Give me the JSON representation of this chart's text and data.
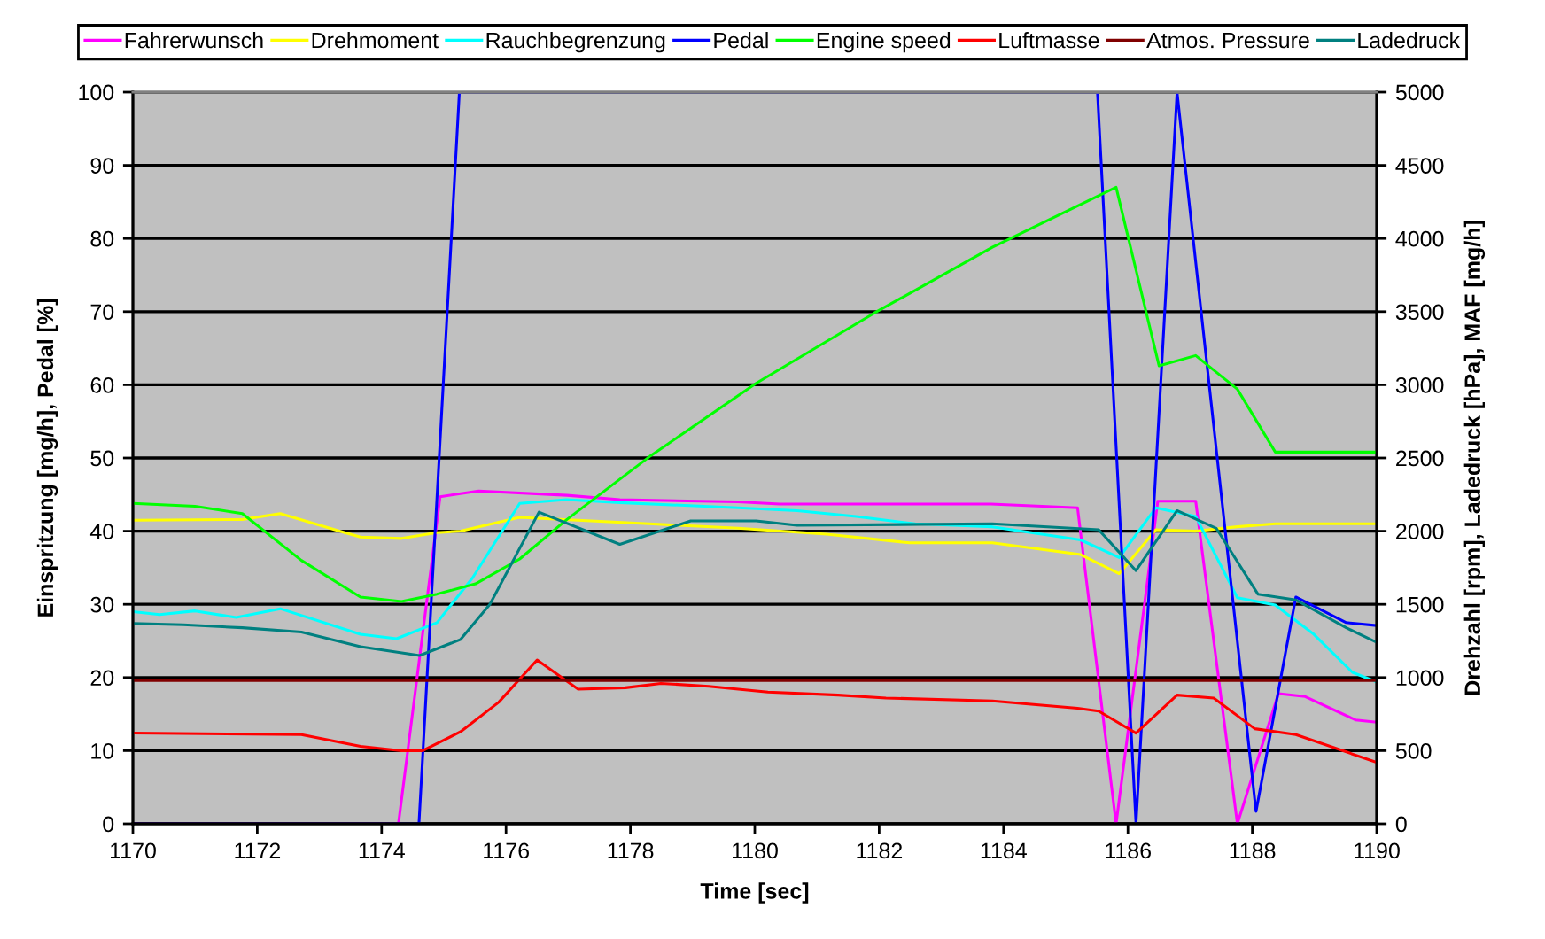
{
  "chart_data": {
    "type": "line",
    "xlabel": "Time [sec]",
    "ylabel": "Einspritzung [mg/h], Pedal [%]",
    "y2label": "Drehzahl [rpm], Ladedruck [hPa], MAF [mg/h]",
    "xlim": [
      1170,
      1190
    ],
    "xticks": [
      1170,
      1172,
      1174,
      1176,
      1178,
      1180,
      1182,
      1184,
      1186,
      1188,
      1190
    ],
    "ylim": [
      0,
      100
    ],
    "yticks": [
      0,
      10,
      20,
      30,
      40,
      50,
      60,
      70,
      80,
      90,
      100
    ],
    "y2lim": [
      0,
      5000
    ],
    "y2ticks": [
      0,
      500,
      1000,
      1500,
      2000,
      2500,
      3000,
      3500,
      4000,
      4500,
      5000
    ],
    "grid": "y",
    "legend": "top",
    "series": [
      {
        "name": "Fahrerwunsch",
        "color": "#ff00ff",
        "x": [
          1170,
          1174.27,
          1174.94,
          1175.56,
          1176.98,
          1177.83,
          1179.73,
          1180.4,
          1183.8,
          1185.19,
          1185.81,
          1186.48,
          1187.09,
          1187.76,
          1188.42,
          1188.85,
          1189.66,
          1190
        ],
        "values": [
          0,
          0,
          44.7,
          45.5,
          44.9,
          44.3,
          44.0,
          43.7,
          43.7,
          43.2,
          0,
          44.1,
          44.1,
          0,
          17.8,
          17.4,
          14.2,
          13.9
        ]
      },
      {
        "name": "Drehmoment",
        "color": "#ffff00",
        "x": [
          1170,
          1171.76,
          1172.37,
          1173.37,
          1173.66,
          1174.32,
          1174.89,
          1175.27,
          1176.22,
          1178.3,
          1179.73,
          1181.15,
          1182.49,
          1183.82,
          1185.24,
          1185.86,
          1186.45,
          1187.09,
          1187.76,
          1188.37,
          1190
        ],
        "values": [
          41.5,
          41.6,
          42.4,
          39.9,
          39.2,
          39.0,
          39.8,
          40.0,
          41.9,
          41.0,
          40.4,
          39.6,
          38.4,
          38.4,
          36.8,
          34.2,
          40.2,
          40.0,
          40.6,
          41.0,
          41.0
        ]
      },
      {
        "name": "Rauchbegrenzung",
        "color": "#00ffff",
        "x": [
          1170,
          1170.43,
          1171,
          1171.66,
          1172.37,
          1173.66,
          1174.24,
          1174.89,
          1175.46,
          1176.22,
          1176.97,
          1177.83,
          1179.73,
          1180.68,
          1181.63,
          1182.58,
          1183.82,
          1185.24,
          1185.86,
          1186.45,
          1187.09,
          1187.76,
          1188.37,
          1188.99,
          1189.61,
          1190
        ],
        "values": [
          29.0,
          28.6,
          29.1,
          28.2,
          29.4,
          25.9,
          25.3,
          27.5,
          33.6,
          43.8,
          44.3,
          43.9,
          43.2,
          42.8,
          42.0,
          41.0,
          40.6,
          38.8,
          36.4,
          43.2,
          42.0,
          30.9,
          29.9,
          25.9,
          20.7,
          19.4
        ]
      },
      {
        "name": "Pedal",
        "color": "#0000ff",
        "x": [
          1170,
          1174.6,
          1175.25,
          1185.51,
          1186.13,
          1186.79,
          1188.06,
          1188.7,
          1189.51,
          1190
        ],
        "values": [
          0,
          0,
          100,
          100,
          0,
          100,
          1.7,
          31.0,
          27.5,
          27.1
        ]
      },
      {
        "name": "Engine speed",
        "color": "#00ff00",
        "axis": "y2",
        "x": [
          1170,
          1171,
          1171.76,
          1172.71,
          1173.66,
          1174.32,
          1174.89,
          1175.51,
          1176.22,
          1176.98,
          1178.31,
          1180.02,
          1181.92,
          1183.82,
          1185.81,
          1186.5,
          1187.09,
          1187.76,
          1188.37,
          1190
        ],
        "values": [
          2190,
          2170,
          2120,
          1800,
          1550,
          1520,
          1570,
          1640,
          1810,
          2080,
          2510,
          3010,
          3490,
          3940,
          4350,
          3130,
          3200,
          2970,
          2540,
          2540
        ]
      },
      {
        "name": "Luftmasse",
        "color": "#ff0000",
        "axis": "y2",
        "x": [
          1170,
          1172.71,
          1173.66,
          1174.32,
          1174.66,
          1175.27,
          1175.88,
          1176.5,
          1177.16,
          1177.92,
          1178.49,
          1179.26,
          1180.21,
          1181.34,
          1182.11,
          1183.82,
          1185.19,
          1185.53,
          1186.13,
          1186.79,
          1187.38,
          1188.04,
          1188.7,
          1190
        ],
        "values": [
          620,
          610,
          530,
          500,
          500,
          630,
          830,
          1120,
          920,
          930,
          960,
          940,
          900,
          880,
          860,
          840,
          790,
          770,
          620,
          880,
          860,
          650,
          610,
          420
        ]
      },
      {
        "name": "Atmos. Pressure",
        "color": "#800000",
        "axis": "y2",
        "x": [
          1170,
          1190
        ],
        "values": [
          980,
          980
        ]
      },
      {
        "name": "Ladedruck",
        "color": "#008080",
        "axis": "y2",
        "x": [
          1170,
          1170.81,
          1171.76,
          1172.71,
          1173.66,
          1174.61,
          1175.27,
          1175.74,
          1176.53,
          1177.83,
          1178.97,
          1180.02,
          1180.68,
          1183.82,
          1185.53,
          1186.13,
          1186.79,
          1187.42,
          1188.09,
          1188.7,
          1189.51,
          1190
        ],
        "values": [
          1370,
          1360,
          1340,
          1310,
          1210,
          1150,
          1260,
          1500,
          2130,
          1910,
          2070,
          2070,
          2040,
          2050,
          2010,
          1730,
          2140,
          2020,
          1570,
          1530,
          1340,
          1240
        ]
      }
    ]
  }
}
